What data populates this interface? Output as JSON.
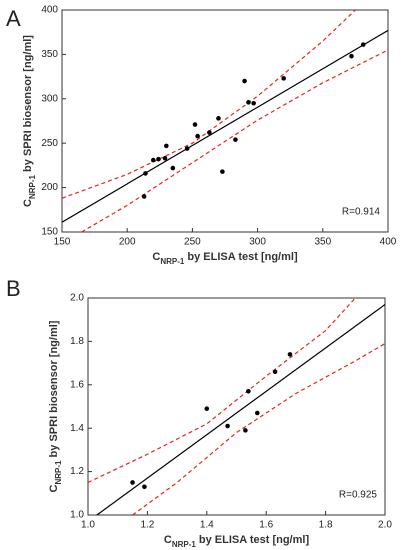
{
  "chart_data": [
    {
      "type": "scatter",
      "panel_label": "A",
      "x_label": {
        "main": "C",
        "sub": "NRP-1",
        "rest": " by ELISA test [ng/ml]"
      },
      "y_label": {
        "main": "C",
        "sub": "NRP-1",
        "rest": " by SPRI biosensor [ng/ml]"
      },
      "annotation": "R=0.914",
      "xlim": [
        150,
        400
      ],
      "xticks": [
        150,
        200,
        250,
        300,
        350,
        400
      ],
      "ylim": [
        150,
        400
      ],
      "yticks": [
        150,
        200,
        250,
        300,
        350,
        400
      ],
      "point_color": "#000000",
      "fit_color": "#000000",
      "band_color": "#e3261f",
      "points": {
        "x": [
          213,
          214,
          220,
          224,
          229,
          230,
          235,
          246,
          252,
          254,
          263,
          270,
          273,
          283,
          290,
          293,
          297,
          320,
          372,
          381
        ],
        "y": [
          190,
          216,
          231,
          232,
          233,
          247,
          222,
          244,
          271,
          258,
          262,
          278,
          218,
          254,
          320,
          296,
          295,
          323,
          348,
          361
        ]
      },
      "fit_line": {
        "x": [
          150,
          400
        ],
        "y": [
          161,
          377
        ]
      },
      "upper_band": {
        "x": [
          150,
          200,
          250,
          300,
          350,
          375
        ],
        "y": [
          188,
          215,
          250,
          303,
          365,
          400
        ]
      },
      "lower_band": {
        "x": [
          165,
          200,
          250,
          300,
          350,
          400
        ],
        "y": [
          150,
          180,
          228,
          276,
          318,
          355
        ]
      }
    },
    {
      "type": "scatter",
      "panel_label": "B",
      "x_label": {
        "main": "C",
        "sub": "NRP-1",
        "rest": " by ELISA test [ng/ml]"
      },
      "y_label": {
        "main": "C",
        "sub": "NRP-1",
        "rest": " by SPRI biosensor [ng/ml]"
      },
      "annotation": "R=0.925",
      "xlim": [
        1.0,
        2.0
      ],
      "xticks": [
        {
          "value": 1.0,
          "label": "1.0"
        },
        1.2,
        1.4,
        1.6,
        1.8,
        {
          "value": 2.0,
          "label": "2.0"
        }
      ],
      "ylim": [
        1.0,
        2.0
      ],
      "yticks": [
        {
          "value": 1.0,
          "label": "1.0"
        },
        1.2,
        1.4,
        1.6,
        1.8,
        {
          "value": 2.0,
          "label": "2.0"
        }
      ],
      "point_color": "#000000",
      "fit_color": "#000000",
      "band_color": "#e3261f",
      "points": {
        "x": [
          1.15,
          1.19,
          1.4,
          1.47,
          1.53,
          1.54,
          1.57,
          1.63,
          1.68
        ],
        "y": [
          1.15,
          1.13,
          1.49,
          1.41,
          1.39,
          1.57,
          1.47,
          1.66,
          1.74
        ]
      },
      "fit_line": {
        "x": [
          1.0,
          2.0
        ],
        "y": [
          0.97,
          1.97
        ]
      },
      "upper_band": {
        "x": [
          1.0,
          1.2,
          1.4,
          1.6,
          1.8,
          1.9
        ],
        "y": [
          1.15,
          1.28,
          1.42,
          1.64,
          1.85,
          2.0
        ]
      },
      "lower_band": {
        "x": [
          1.15,
          1.3,
          1.5,
          1.7,
          1.9,
          2.0
        ],
        "y": [
          1.0,
          1.15,
          1.38,
          1.56,
          1.71,
          1.79
        ]
      }
    }
  ]
}
